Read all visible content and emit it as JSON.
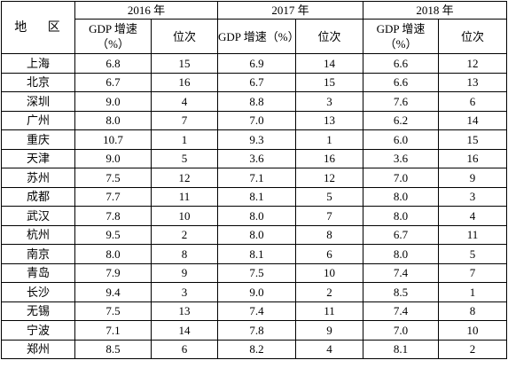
{
  "table": {
    "region_header": "地 区",
    "years": [
      "2016 年",
      "2017 年",
      "2018 年"
    ],
    "gdp_header": "GDP 增速（%）",
    "rank_header": "位次",
    "rows": [
      {
        "city": "上海",
        "y2016": {
          "gdp": "6.8",
          "rank": "15"
        },
        "y2017": {
          "gdp": "6.9",
          "rank": "14"
        },
        "y2018": {
          "gdp": "6.6",
          "rank": "12"
        }
      },
      {
        "city": "北京",
        "y2016": {
          "gdp": "6.7",
          "rank": "16"
        },
        "y2017": {
          "gdp": "6.7",
          "rank": "15"
        },
        "y2018": {
          "gdp": "6.6",
          "rank": "13"
        }
      },
      {
        "city": "深圳",
        "y2016": {
          "gdp": "9.0",
          "rank": "4"
        },
        "y2017": {
          "gdp": "8.8",
          "rank": "3"
        },
        "y2018": {
          "gdp": "7.6",
          "rank": "6"
        }
      },
      {
        "city": "广州",
        "y2016": {
          "gdp": "8.0",
          "rank": "7"
        },
        "y2017": {
          "gdp": "7.0",
          "rank": "13"
        },
        "y2018": {
          "gdp": "6.2",
          "rank": "14"
        }
      },
      {
        "city": "重庆",
        "y2016": {
          "gdp": "10.7",
          "rank": "1"
        },
        "y2017": {
          "gdp": "9.3",
          "rank": "1"
        },
        "y2018": {
          "gdp": "6.0",
          "rank": "15"
        }
      },
      {
        "city": "天津",
        "y2016": {
          "gdp": "9.0",
          "rank": "5"
        },
        "y2017": {
          "gdp": "3.6",
          "rank": "16"
        },
        "y2018": {
          "gdp": "3.6",
          "rank": "16"
        }
      },
      {
        "city": "苏州",
        "y2016": {
          "gdp": "7.5",
          "rank": "12"
        },
        "y2017": {
          "gdp": "7.1",
          "rank": "12"
        },
        "y2018": {
          "gdp": "7.0",
          "rank": "9"
        }
      },
      {
        "city": "成都",
        "y2016": {
          "gdp": "7.7",
          "rank": "11"
        },
        "y2017": {
          "gdp": "8.1",
          "rank": "5"
        },
        "y2018": {
          "gdp": "8.0",
          "rank": "3"
        }
      },
      {
        "city": "武汉",
        "y2016": {
          "gdp": "7.8",
          "rank": "10"
        },
        "y2017": {
          "gdp": "8.0",
          "rank": "7"
        },
        "y2018": {
          "gdp": "8.0",
          "rank": "4"
        }
      },
      {
        "city": "杭州",
        "y2016": {
          "gdp": "9.5",
          "rank": "2"
        },
        "y2017": {
          "gdp": "8.0",
          "rank": "8"
        },
        "y2018": {
          "gdp": "6.7",
          "rank": "11"
        }
      },
      {
        "city": "南京",
        "y2016": {
          "gdp": "8.0",
          "rank": "8"
        },
        "y2017": {
          "gdp": "8.1",
          "rank": "6"
        },
        "y2018": {
          "gdp": "8.0",
          "rank": "5"
        }
      },
      {
        "city": "青岛",
        "y2016": {
          "gdp": "7.9",
          "rank": "9"
        },
        "y2017": {
          "gdp": "7.5",
          "rank": "10"
        },
        "y2018": {
          "gdp": "7.4",
          "rank": "7"
        }
      },
      {
        "city": "长沙",
        "y2016": {
          "gdp": "9.4",
          "rank": "3"
        },
        "y2017": {
          "gdp": "9.0",
          "rank": "2"
        },
        "y2018": {
          "gdp": "8.5",
          "rank": "1"
        }
      },
      {
        "city": "无锡",
        "y2016": {
          "gdp": "7.5",
          "rank": "13"
        },
        "y2017": {
          "gdp": "7.4",
          "rank": "11"
        },
        "y2018": {
          "gdp": "7.4",
          "rank": "8"
        }
      },
      {
        "city": "宁波",
        "y2016": {
          "gdp": "7.1",
          "rank": "14"
        },
        "y2017": {
          "gdp": "7.8",
          "rank": "9"
        },
        "y2018": {
          "gdp": "7.0",
          "rank": "10"
        }
      },
      {
        "city": "郑州",
        "y2016": {
          "gdp": "8.5",
          "rank": "6"
        },
        "y2017": {
          "gdp": "8.2",
          "rank": "4"
        },
        "y2018": {
          "gdp": "8.1",
          "rank": "2"
        }
      }
    ]
  }
}
